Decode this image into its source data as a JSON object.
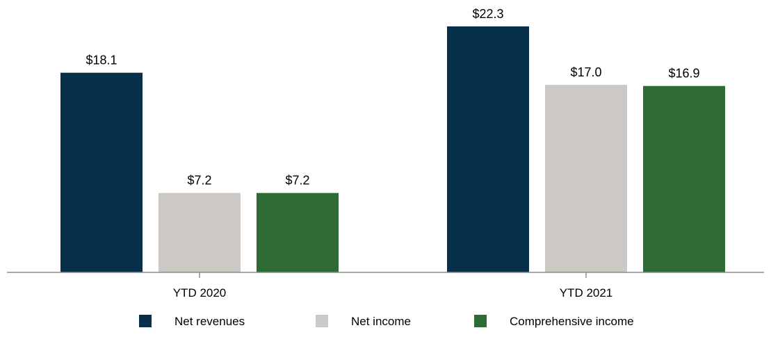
{
  "chart_data": {
    "type": "bar",
    "categories": [
      "YTD 2020",
      "YTD 2021"
    ],
    "series": [
      {
        "name": "Net revenues",
        "values": [
          18.1,
          22.3
        ],
        "labels": [
          "$18.1",
          "$22.3"
        ],
        "color": "#08304b"
      },
      {
        "name": "Net income",
        "values": [
          7.2,
          17.0
        ],
        "labels": [
          "$7.2",
          "$17.0"
        ],
        "color": "#ccc9c4"
      },
      {
        "name": "Comprehensive income",
        "values": [
          7.2,
          16.9
        ],
        "labels": [
          "$7.2",
          "$16.9"
        ],
        "color": "#2f6b35"
      }
    ],
    "ylim": [
      0,
      22.3
    ],
    "grid": false,
    "legend_position": "bottom"
  }
}
